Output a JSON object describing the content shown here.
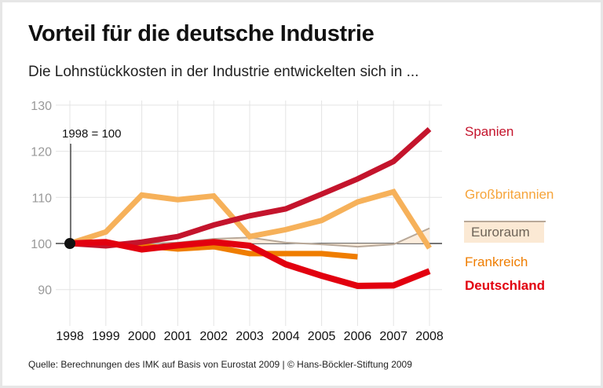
{
  "title": "Vorteil für die deutsche Industrie",
  "subtitle": "Die Lohnstückkosten in der Industrie entwickelten sich in ...",
  "source": "Quelle: Berechnungen des IMK auf Basis von Eurostat 2009 | © Hans-Böckler-Stiftung 2009",
  "chart_data": {
    "type": "line",
    "annotation": "1998 = 100",
    "x": [
      1998,
      1999,
      2000,
      2001,
      2002,
      2003,
      2004,
      2005,
      2006,
      2007,
      2008
    ],
    "xticks": [
      "1998",
      "1999",
      "2000",
      "2001",
      "2002",
      "2003",
      "2004",
      "2005",
      "2006",
      "2007",
      "2008"
    ],
    "yticks": [
      "90",
      "100",
      "110",
      "120",
      "130"
    ],
    "ylim": [
      85,
      130
    ],
    "grid": true,
    "legend_placement": "right",
    "series": [
      {
        "name": "Euroraum",
        "color": "#b8a898",
        "values": [
          100,
          100,
          100,
          100.2,
          101,
          101.3,
          100.2,
          99.8,
          99.3,
          99.8,
          103.3
        ]
      },
      {
        "name": "Großbritannien",
        "color": "#f6b15a",
        "values": [
          100,
          102.5,
          110.5,
          109.5,
          110.3,
          101.5,
          103,
          105,
          109,
          111.2,
          99
        ]
      },
      {
        "name": "Frankreich",
        "color": "#ef7d00",
        "values": [
          100,
          100,
          99.5,
          98.8,
          99.3,
          97.8,
          97.8,
          97.8,
          97.1,
          null,
          null
        ]
      },
      {
        "name": "Spanien",
        "color": "#c4142c",
        "values": [
          100,
          99.5,
          100.3,
          101.5,
          104,
          106,
          107.5,
          110.7,
          114,
          117.8,
          124.8
        ]
      },
      {
        "name": "Deutschland",
        "color": "#e2000f",
        "values": [
          100,
          100.3,
          98.7,
          99.6,
          100.3,
          99.5,
          95.5,
          93,
          90.8,
          90.9,
          94
        ]
      }
    ]
  }
}
